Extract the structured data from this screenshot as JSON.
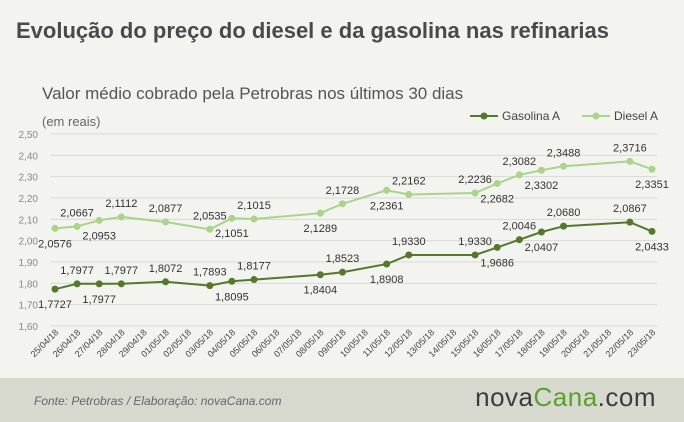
{
  "header": {
    "title": "Evolução do preço do diesel e da gasolina nas refinarias",
    "subtitle": "Valor médio cobrado pela Petrobras nos últimos 30 dias",
    "unit": "(em reais)"
  },
  "footer": {
    "source": "Fonte:  Petrobras  / Elaboração:  novaCana.com",
    "brand_prefix": "nova",
    "brand_accent": "Cana",
    "brand_suffix": ".com"
  },
  "colors": {
    "gasolina": "#55772e",
    "diesel": "#a9d48a",
    "grid": "#d8d8d8",
    "accent": "#5aa02c"
  },
  "chart_data": {
    "type": "line",
    "categories": [
      "25/04/18",
      "26/04/18",
      "27/04/18",
      "28/04/18",
      "29/04/18",
      "01/05/18",
      "02/05/18",
      "03/05/18",
      "04/05/18",
      "05/05/18",
      "06/05/18",
      "07/05/18",
      "08/05/18",
      "09/05/18",
      "10/05/18",
      "11/05/18",
      "12/05/18",
      "13/05/18",
      "14/05/18",
      "15/05/18",
      "16/05/18",
      "17/05/18",
      "18/05/18",
      "19/05/18",
      "20/05/18",
      "21/05/18",
      "22/05/18",
      "23/05/18"
    ],
    "y_ticks": [
      "2,50",
      "2,40",
      "2,30",
      "2,20",
      "2,10",
      "2,00",
      "1,90",
      "1,80",
      "1,70",
      "1,60"
    ],
    "ylim": [
      1.6,
      2.5
    ],
    "grid": true,
    "legend": "top-right",
    "series": [
      {
        "name": "Gasolina A",
        "points": [
          {
            "x": "25/04/18",
            "y": 1.7727,
            "label": "1,7727"
          },
          {
            "x": "26/04/18",
            "y": 1.7977,
            "label": "1,7977"
          },
          {
            "x": "27/04/18",
            "y": 1.7977,
            "label": "1,7977"
          },
          {
            "x": "28/04/18",
            "y": 1.7977,
            "label": "1,7977"
          },
          {
            "x": "01/05/18",
            "y": 1.8072,
            "label": "1,8072"
          },
          {
            "x": "03/05/18",
            "y": 1.7893,
            "label": "1,7893"
          },
          {
            "x": "04/05/18",
            "y": 1.8095,
            "label": "1,8095"
          },
          {
            "x": "05/05/18",
            "y": 1.8177,
            "label": "1,8177"
          },
          {
            "x": "08/05/18",
            "y": 1.8404,
            "label": "1,8404"
          },
          {
            "x": "09/05/18",
            "y": 1.8523,
            "label": "1,8523"
          },
          {
            "x": "11/05/18",
            "y": 1.8908,
            "label": "1,8908"
          },
          {
            "x": "12/05/18",
            "y": 1.933,
            "label": "1,9330"
          },
          {
            "x": "15/05/18",
            "y": 1.933,
            "label": "1,9330"
          },
          {
            "x": "16/05/18",
            "y": 1.9686,
            "label": "1,9686"
          },
          {
            "x": "17/05/18",
            "y": 2.0046,
            "label": "2,0046"
          },
          {
            "x": "18/05/18",
            "y": 2.0407,
            "label": "2,0407"
          },
          {
            "x": "19/05/18",
            "y": 2.068,
            "label": "2,0680"
          },
          {
            "x": "22/05/18",
            "y": 2.0867,
            "label": "2,0867"
          },
          {
            "x": "23/05/18",
            "y": 2.0433,
            "label": "2,0433"
          }
        ]
      },
      {
        "name": "Diesel A",
        "points": [
          {
            "x": "25/04/18",
            "y": 2.0576,
            "label": "2,0576"
          },
          {
            "x": "26/04/18",
            "y": 2.0667,
            "label": "2,0667"
          },
          {
            "x": "27/04/18",
            "y": 2.0953,
            "label": "2,0953"
          },
          {
            "x": "28/04/18",
            "y": 2.1112,
            "label": "2,1112"
          },
          {
            "x": "01/05/18",
            "y": 2.0877,
            "label": "2,0877"
          },
          {
            "x": "03/05/18",
            "y": 2.0535,
            "label": "2,0535"
          },
          {
            "x": "04/05/18",
            "y": 2.1051,
            "label": "2,1051"
          },
          {
            "x": "05/05/18",
            "y": 2.1015,
            "label": "2,1015"
          },
          {
            "x": "08/05/18",
            "y": 2.1289,
            "label": "2,1289"
          },
          {
            "x": "09/05/18",
            "y": 2.1728,
            "label": "2,1728"
          },
          {
            "x": "11/05/18",
            "y": 2.2361,
            "label": "2,2361"
          },
          {
            "x": "12/05/18",
            "y": 2.2162,
            "label": "2,2162"
          },
          {
            "x": "15/05/18",
            "y": 2.2236,
            "label": "2,2236"
          },
          {
            "x": "16/05/18",
            "y": 2.2682,
            "label": "2,2682"
          },
          {
            "x": "17/05/18",
            "y": 2.3082,
            "label": "2,3082"
          },
          {
            "x": "18/05/18",
            "y": 2.3302,
            "label": "2,3302"
          },
          {
            "x": "19/05/18",
            "y": 2.3488,
            "label": "2,3488"
          },
          {
            "x": "22/05/18",
            "y": 2.3716,
            "label": "2,3716"
          },
          {
            "x": "23/05/18",
            "y": 2.3351,
            "label": "2,3351"
          }
        ]
      }
    ]
  }
}
